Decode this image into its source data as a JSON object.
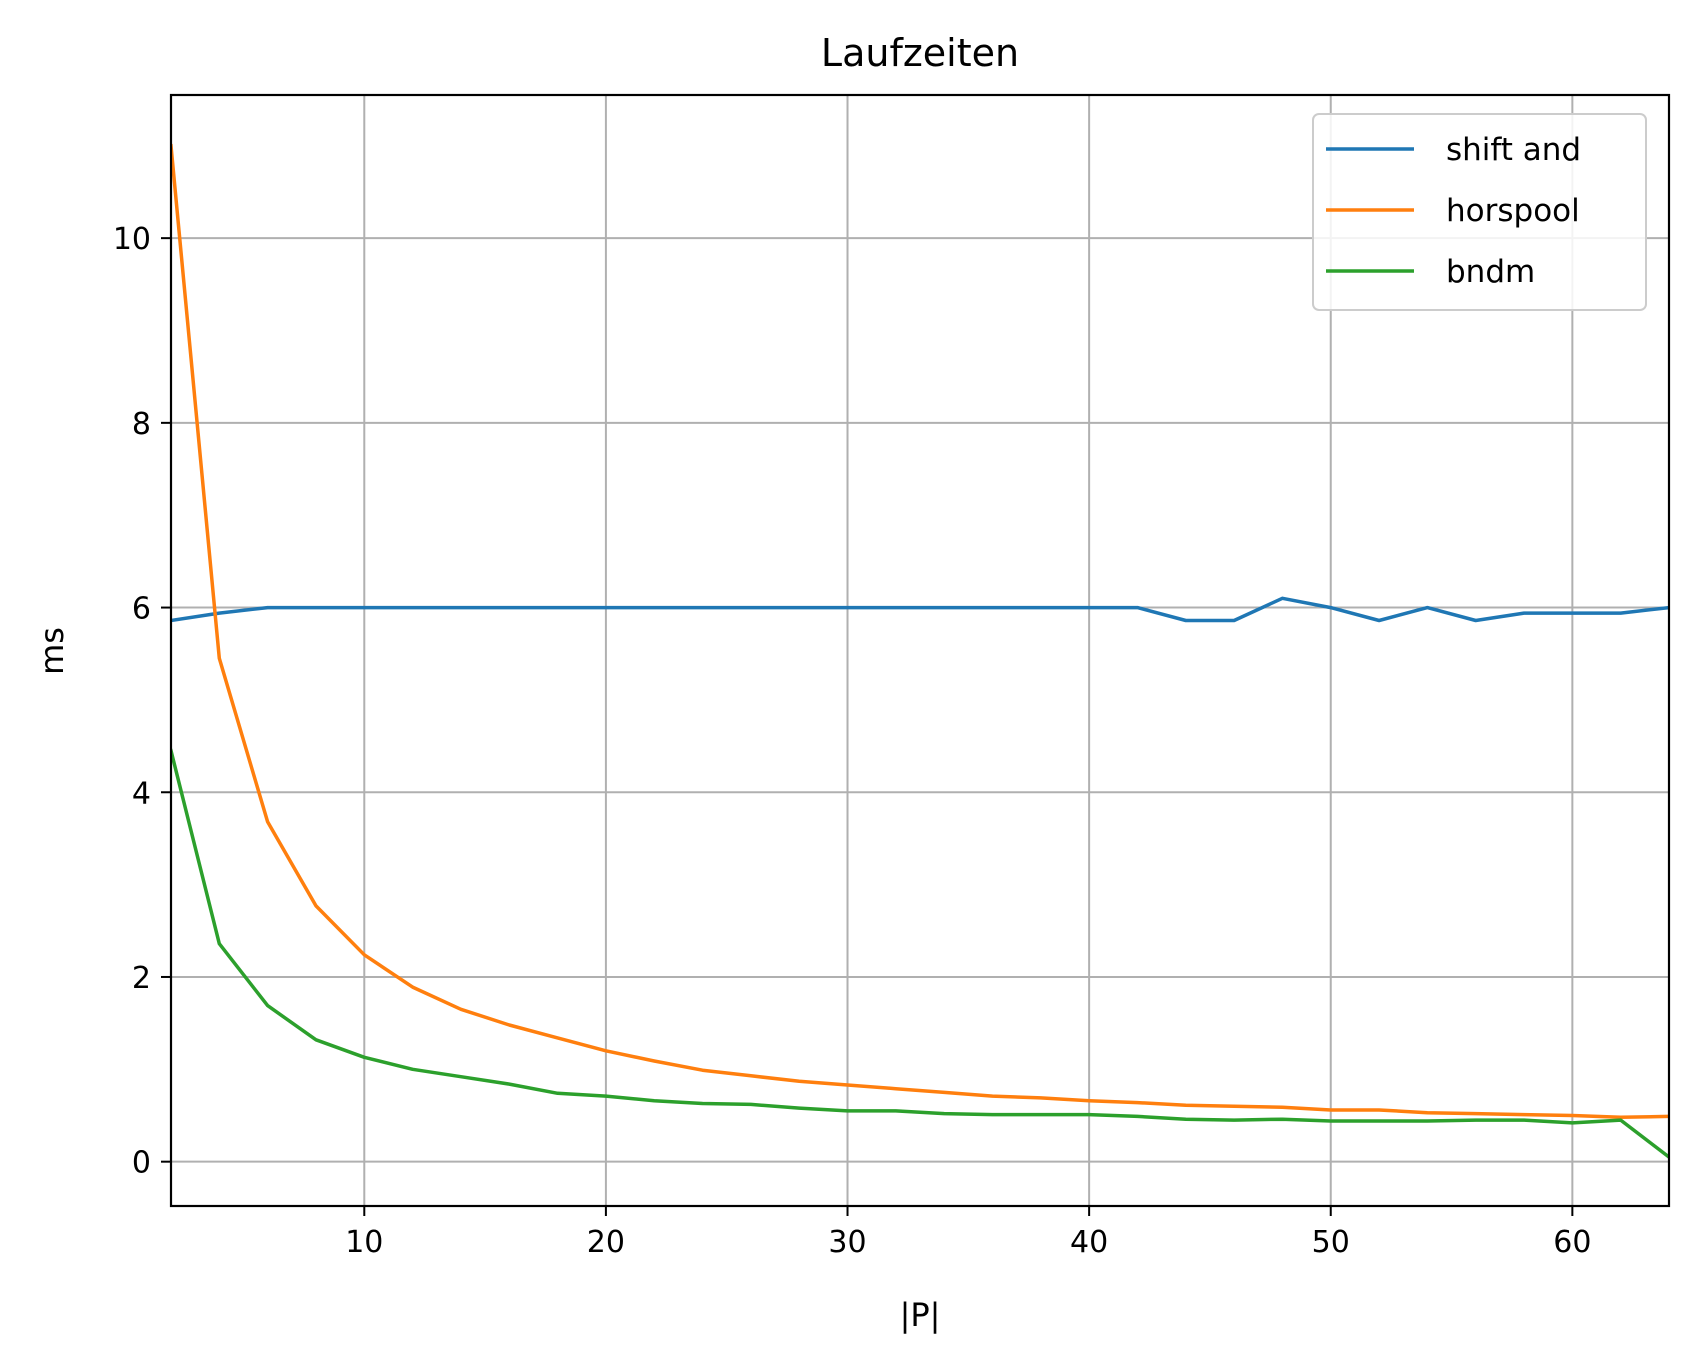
{
  "chart_data": {
    "type": "line",
    "title": "Laufzeiten",
    "xlabel": "|P|",
    "ylabel": "ms",
    "xlim": [
      2,
      64
    ],
    "ylim": [
      -0.48,
      11.55
    ],
    "xticks": [
      10,
      20,
      30,
      40,
      50,
      60
    ],
    "yticks": [
      0,
      2,
      4,
      6,
      8,
      10
    ],
    "grid": true,
    "legend_position": "top-right",
    "x": [
      2,
      4,
      6,
      8,
      10,
      12,
      14,
      16,
      18,
      20,
      22,
      24,
      26,
      28,
      30,
      32,
      34,
      36,
      38,
      40,
      42,
      44,
      46,
      48,
      50,
      52,
      54,
      56,
      58,
      60,
      62,
      64
    ],
    "series": [
      {
        "name": "shift and",
        "color": "#1f77b4",
        "values": [
          5.86,
          5.94,
          6.0,
          6.0,
          6.0,
          6.0,
          6.0,
          6.0,
          6.0,
          6.0,
          6.0,
          6.0,
          6.0,
          6.0,
          6.0,
          6.0,
          6.0,
          6.0,
          6.0,
          6.0,
          6.0,
          5.86,
          5.86,
          6.1,
          6.0,
          5.86,
          6.0,
          5.86,
          5.94,
          5.94,
          5.94,
          6.0
        ]
      },
      {
        "name": "horspool",
        "color": "#ff7f0e",
        "values": [
          11.0,
          5.45,
          3.68,
          2.77,
          2.24,
          1.89,
          1.65,
          1.48,
          1.34,
          1.2,
          1.09,
          0.99,
          0.93,
          0.87,
          0.83,
          0.79,
          0.75,
          0.71,
          0.69,
          0.66,
          0.64,
          0.61,
          0.6,
          0.59,
          0.56,
          0.56,
          0.53,
          0.52,
          0.51,
          0.5,
          0.48,
          0.49
        ]
      },
      {
        "name": "bndm",
        "color": "#2ca02c",
        "values": [
          4.45,
          2.36,
          1.69,
          1.32,
          1.13,
          1.0,
          0.92,
          0.84,
          0.74,
          0.71,
          0.66,
          0.63,
          0.62,
          0.58,
          0.55,
          0.55,
          0.52,
          0.51,
          0.51,
          0.51,
          0.49,
          0.46,
          0.45,
          0.46,
          0.44,
          0.44,
          0.44,
          0.45,
          0.45,
          0.42,
          0.45,
          0.05
        ]
      }
    ]
  }
}
